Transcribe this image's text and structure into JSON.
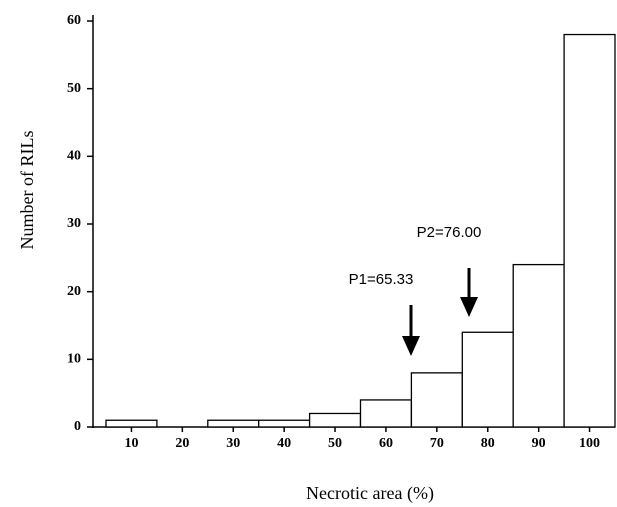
{
  "chart_data": {
    "type": "bar",
    "x_label": "Necrotic area (%)",
    "y_label": "Number of RILs",
    "categories": [
      "10",
      "20",
      "30",
      "40",
      "50",
      "60",
      "70",
      "80",
      "90",
      "100"
    ],
    "values": [
      1,
      0,
      1,
      1,
      2,
      4,
      8,
      14,
      24,
      58
    ],
    "color": "#ffffff",
    "edge_color": "#000000",
    "ylim": [
      0,
      60
    ],
    "yticks": [
      0,
      10,
      20,
      30,
      40,
      50,
      60
    ],
    "grid": false,
    "annotations": [
      "P1=65.33",
      "P2=76.00"
    ]
  }
}
